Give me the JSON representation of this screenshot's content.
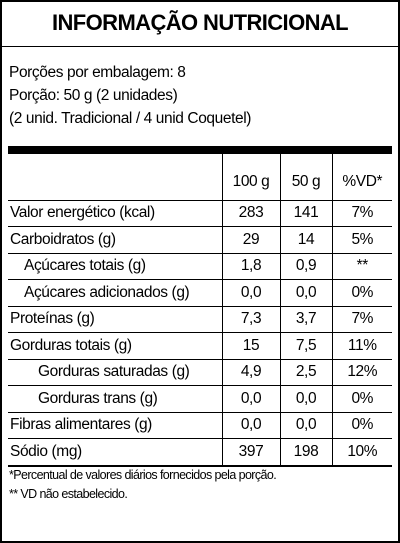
{
  "header": {
    "title": "INFORMAÇÃO NUTRICIONAL"
  },
  "serving": [
    "Porções por embalagem: 8",
    "Porção: 50 g (2 unidades)",
    "(2 unid. Tradicional / 4 unid Coquetel)"
  ],
  "table": {
    "columns": [
      "100 g",
      "50 g",
      "%VD*"
    ],
    "rows": [
      [
        "Valor energético (kcal)",
        "283",
        "141",
        "7%"
      ],
      [
        "Carboidratos (g)",
        "29",
        "14",
        "5%"
      ],
      [
        "Açúcares totais (g)",
        "1,8",
        "0,9",
        "**"
      ],
      [
        "Açúcares adicionados (g)",
        "0,0",
        "0,0",
        "0%"
      ],
      [
        "Proteínas (g)",
        "7,3",
        "3,7",
        "7%"
      ],
      [
        "Gorduras totais (g)",
        "15",
        "7,5",
        "11%"
      ],
      [
        "Gorduras saturadas (g)",
        "4,9",
        "2,5",
        "12%"
      ],
      [
        "Gorduras trans (g)",
        "0,0",
        "0,0",
        "0%"
      ],
      [
        "Fibras alimentares (g)",
        "0,0",
        "0,0",
        "0%"
      ],
      [
        "Sódio (mg)",
        "397",
        "198",
        "10%"
      ]
    ]
  },
  "footnotes": [
    "*Percentual de valores diários fornecidos pela porção.",
    "** VD não estabelecido."
  ]
}
